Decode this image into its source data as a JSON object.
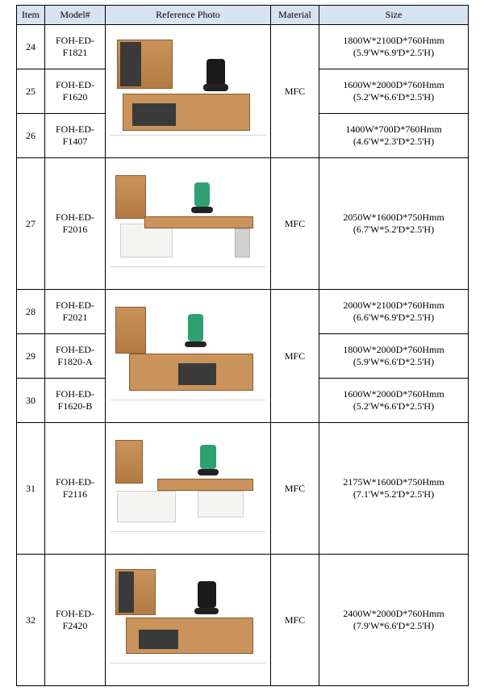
{
  "headers": {
    "item": "Item",
    "model": "Model#",
    "photo": "Reference Photo",
    "material": "Material",
    "size": "Size"
  },
  "groups": [
    {
      "material": "MFC",
      "photo_style": "wood-black",
      "rows": [
        {
          "item": "24",
          "model_l1": "FOH-ED-",
          "model_l2": "F1821",
          "size_l1": "1800W*2100D*760Hmm",
          "size_l2": "(5.9'W*6.9'D*2.5'H)"
        },
        {
          "item": "25",
          "model_l1": "FOH-ED-",
          "model_l2": "F1620",
          "size_l1": "1600W*2000D*760Hmm",
          "size_l2": "(5.2'W*6.6'D*2.5'H)"
        },
        {
          "item": "26",
          "model_l1": "FOH-ED-",
          "model_l2": "F1407",
          "size_l1": "1400W*700D*760Hmm",
          "size_l2": "(4.6'W*2.3'D*2.5'H)"
        }
      ]
    },
    {
      "material": "MFC",
      "photo_style": "wood-white-green",
      "rows": [
        {
          "item": "27",
          "model_l1": "FOH-ED-",
          "model_l2": "F2016",
          "size_l1": "2050W*1600D*750Hmm",
          "size_l2": "(6.7'W*5.2'D*2.5'H)"
        }
      ]
    },
    {
      "material": "MFC",
      "photo_style": "wood-green",
      "rows": [
        {
          "item": "28",
          "model_l1": "FOH-ED-",
          "model_l2": "F2021",
          "size_l1": "2000W*2100D*760Hmm",
          "size_l2": "(6.6'W*6.9'D*2.5'H)"
        },
        {
          "item": "29",
          "model_l1": "FOH-ED-",
          "model_l2": "F1820-A",
          "size_l1": "1800W*2000D*760Hmm",
          "size_l2": "(5.9'W*6.6'D*2.5'H)"
        },
        {
          "item": "30",
          "model_l1": "FOH-ED-",
          "model_l2": "F1620-B",
          "size_l1": "1600W*2000D*760Hmm",
          "size_l2": "(5.2'W*6.6'D*2.5'H)"
        }
      ]
    },
    {
      "material": "MFC",
      "photo_style": "wood-white-green2",
      "rows": [
        {
          "item": "31",
          "model_l1": "FOH-ED-",
          "model_l2": "F2116",
          "size_l1": "2175W*1600D*750Hmm",
          "size_l2": "(7.1'W*5.2'D*2.5'H)"
        }
      ]
    },
    {
      "material": "MFC",
      "photo_style": "wood-black2",
      "rows": [
        {
          "item": "32",
          "model_l1": "FOH-ED-",
          "model_l2": "F2420",
          "size_l1": "2400W*2000D*760Hmm",
          "size_l2": "(7.9'W*6.6'D*2.5'H)"
        }
      ]
    }
  ],
  "style": {
    "header_bg": "#d7e3ef",
    "border": "#000000",
    "wood": "#c9935b",
    "wood_dark": "#b37b43",
    "white_panel": "#f4f4f2",
    "dark_panel": "#3a3a3a",
    "green_chair": "#2fa06f"
  }
}
